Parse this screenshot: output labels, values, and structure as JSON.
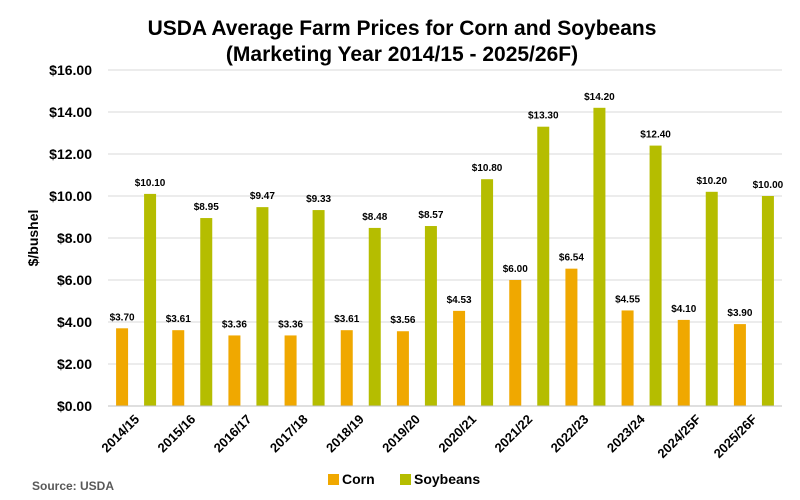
{
  "chart_data": {
    "type": "bar",
    "title": "USDA Average Farm Prices for Corn and Soybeans",
    "subtitle": "(Marketing Year 2014/15 - 2025/26F)",
    "ylabel": "$/bushel",
    "xlabel": "",
    "ylim": [
      0,
      16
    ],
    "yticks": [
      "$0.00",
      "$2.00",
      "$4.00",
      "$6.00",
      "$8.00",
      "$10.00",
      "$12.00",
      "$14.00",
      "$16.00"
    ],
    "grid": true,
    "legend_position": "bottom",
    "categories": [
      "2014/15",
      "2015/16",
      "2016/17",
      "2017/18",
      "2018/19",
      "2019/20",
      "2020/21",
      "2021/22",
      "2022/23",
      "2023/24",
      "2024/25F",
      "2025/26F"
    ],
    "series": [
      {
        "name": "Corn",
        "color": "#f0a800",
        "values": [
          3.7,
          3.61,
          3.36,
          3.36,
          3.61,
          3.56,
          4.53,
          6.0,
          6.54,
          4.55,
          4.1,
          3.9
        ],
        "labels": [
          "$3.70",
          "$3.61",
          "$3.36",
          "$3.36",
          "$3.61",
          "$3.56",
          "$4.53",
          "$6.00",
          "$6.54",
          "$4.55",
          "$4.10",
          "$3.90"
        ]
      },
      {
        "name": "Soybeans",
        "color": "#b5bd00",
        "values": [
          10.1,
          8.95,
          9.47,
          9.33,
          8.48,
          8.57,
          10.8,
          13.3,
          14.2,
          12.4,
          10.2,
          10.0
        ],
        "labels": [
          "$10.10",
          "$8.95",
          "$9.47",
          "$9.33",
          "$8.48",
          "$8.57",
          "$10.80",
          "$13.30",
          "$14.20",
          "$12.40",
          "$10.20",
          "$10.00"
        ]
      }
    ],
    "source": "Source: USDA"
  }
}
